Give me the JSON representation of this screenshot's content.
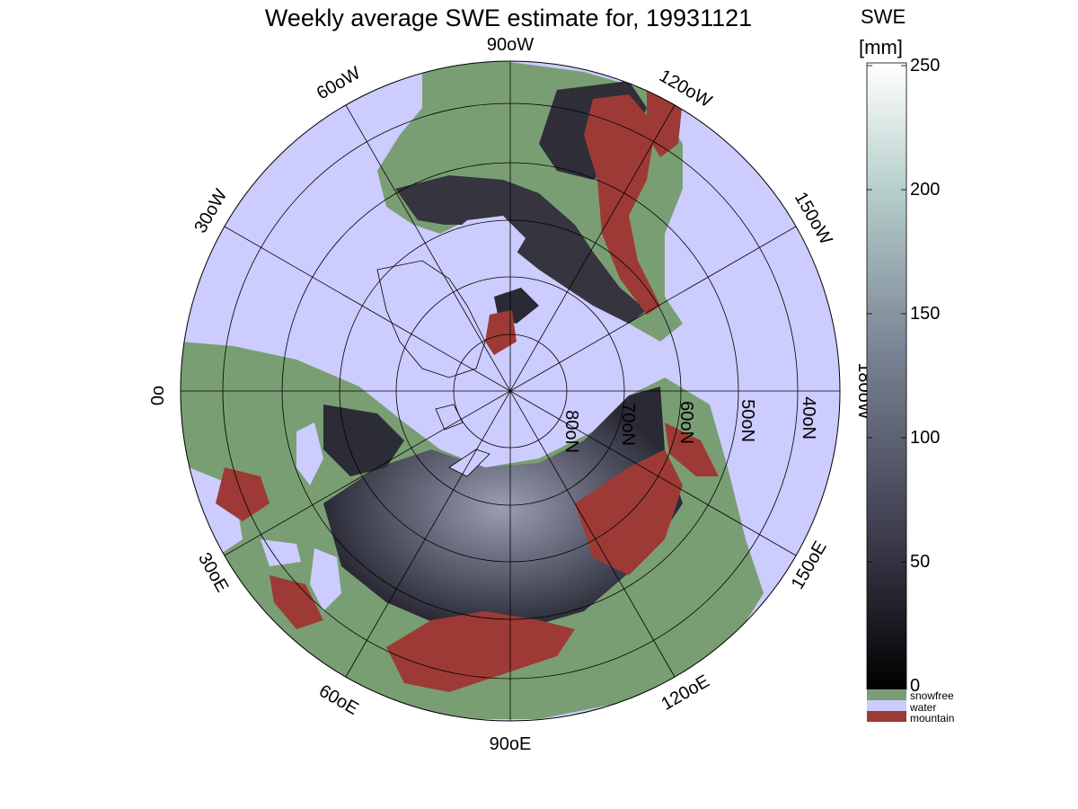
{
  "title": "Weekly average SWE estimate for, 19931121",
  "colorbar": {
    "title": "SWE",
    "unit": "[mm]",
    "ticks": [
      "250",
      "200",
      "150",
      "100",
      "50",
      "0"
    ],
    "range": [
      0,
      250
    ],
    "colors_low_to_high": [
      "#000000",
      "#3e3e4f",
      "#7c8696",
      "#b7cfcb",
      "#ffffff"
    ]
  },
  "legend": [
    {
      "label": "snowfree",
      "color": "#7a9e73"
    },
    {
      "label": "water",
      "color": "#ccccff"
    },
    {
      "label": "mountain",
      "color": "#9e3a35"
    }
  ],
  "map": {
    "projection": "north polar stereographic",
    "water_color": "#ccccff",
    "snowfree_color": "#7a9e73",
    "mountain_color": "#9e3a35",
    "graticule_color": "#000000",
    "longitude_labels": [
      "90oW",
      "120oW",
      "150oW",
      "180oW",
      "150oE",
      "120oE",
      "90oE",
      "60oE",
      "30oE",
      "0o",
      "30oW",
      "60oW"
    ],
    "latitude_labels": [
      "80oN",
      "70oN",
      "60oN",
      "50oN",
      "40oN"
    ]
  }
}
